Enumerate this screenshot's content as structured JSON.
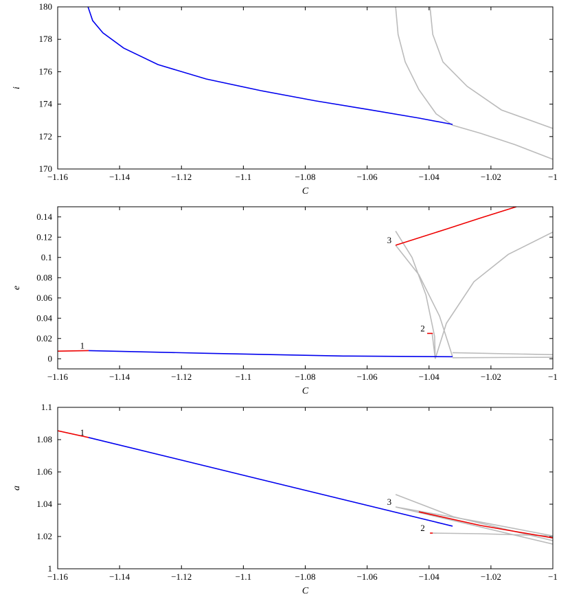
{
  "chart_data": [
    {
      "type": "line",
      "xlabel": "C",
      "ylabel": "i",
      "xlim": [
        -1.16,
        -1
      ],
      "ylim": [
        170,
        180
      ],
      "xticks": [
        {
          "value": -1.16,
          "label": "−1.16"
        },
        {
          "value": -1.14,
          "label": "−1.14"
        },
        {
          "value": -1.12,
          "label": "−1.12"
        },
        {
          "value": -1.1,
          "label": "−1.1"
        },
        {
          "value": -1.08,
          "label": "−1.08"
        },
        {
          "value": -1.06,
          "label": "−1.06"
        },
        {
          "value": -1.04,
          "label": "−1.04"
        },
        {
          "value": -1.02,
          "label": "−1.02"
        },
        {
          "value": -1,
          "label": "−1"
        }
      ],
      "yticks": [
        170,
        172,
        174,
        176,
        178,
        180
      ],
      "series": [
        {
          "color": "#bbbbbb",
          "x": [
            -1.0508,
            -1.05,
            -1.0477,
            -1.0433,
            -1.0377,
            -1.0324,
            -1.0233,
            -1.0122,
            -1
          ],
          "values": [
            180,
            178.3,
            176.6,
            174.9,
            173.4,
            172.7,
            172.2,
            171.5,
            170.6
          ]
        },
        {
          "color": "#bbbbbb",
          "x": [
            -1.0397,
            -1.0388,
            -1.0355,
            -1.0277,
            -1.0166,
            -1
          ],
          "values": [
            180,
            178.3,
            176.6,
            175.1,
            173.64,
            172.5
          ]
        },
        {
          "color": "#0000ee",
          "x": [
            -1.1502,
            -1.1487,
            -1.1454,
            -1.1387,
            -1.1276,
            -1.112,
            -1.0943,
            -1.0766,
            -1.0588,
            -1.0433,
            -1.0324
          ],
          "values": [
            180,
            179.15,
            178.4,
            177.46,
            176.44,
            175.55,
            174.83,
            174.2,
            173.64,
            173.14,
            172.75
          ]
        }
      ],
      "annotations": []
    },
    {
      "type": "line",
      "xlabel": "C",
      "ylabel": "e",
      "xlim": [
        -1.16,
        -1
      ],
      "ylim": [
        -0.01,
        0.15
      ],
      "xticks": [
        {
          "value": -1.16,
          "label": "−1.16"
        },
        {
          "value": -1.14,
          "label": "−1.14"
        },
        {
          "value": -1.12,
          "label": "−1.12"
        },
        {
          "value": -1.1,
          "label": "−1.1"
        },
        {
          "value": -1.08,
          "label": "−1.08"
        },
        {
          "value": -1.06,
          "label": "−1.06"
        },
        {
          "value": -1.04,
          "label": "−1.04"
        },
        {
          "value": -1.02,
          "label": "−1.02"
        },
        {
          "value": -1,
          "label": "−1"
        }
      ],
      "yticks": [
        0,
        0.02,
        0.04,
        0.06,
        0.08,
        0.1,
        0.12,
        0.14
      ],
      "series": [
        {
          "color": "#bbbbbb",
          "x": [
            -1.0508,
            -1.0455,
            -1.041,
            -1.0382,
            -1.038
          ],
          "values": [
            0.126,
            0.1,
            0.063,
            0.022,
            0
          ]
        },
        {
          "color": "#bbbbbb",
          "x": [
            -1.0508,
            -1.0433,
            -1.0366,
            -1.0324
          ],
          "values": [
            0.112,
            0.083,
            0.042,
            0.002
          ]
        },
        {
          "color": "#bbbbbb",
          "x": [
            -1.038,
            -1.0344,
            -1.0255,
            -1.0144,
            -1
          ],
          "values": [
            0,
            0.035,
            0.076,
            0.103,
            0.125
          ]
        },
        {
          "color": "#bbbbbb",
          "x": [
            -1.0324,
            -1
          ],
          "values": [
            0.006,
            0.004
          ]
        },
        {
          "color": "#bbbbbb",
          "x": [
            -1.0324,
            -1
          ],
          "values": [
            0.001,
            0.0015
          ]
        },
        {
          "color": "#bbbbbb",
          "x": [
            -1.039,
            -1.038
          ],
          "values": [
            0.025,
            0
          ]
        },
        {
          "color": "#ee0000",
          "x": [
            -1.16,
            -1.15
          ],
          "values": [
            0.0075,
            0.008
          ]
        },
        {
          "color": "#ee0000",
          "x": [
            -1.0508,
            -1.0344,
            -1.0233,
            -1.0118
          ],
          "values": [
            0.112,
            0.128,
            0.139,
            0.15
          ]
        },
        {
          "color": "#ee0000",
          "x": [
            -1.0406,
            -1.0388
          ],
          "values": [
            0.025,
            0.025
          ]
        },
        {
          "color": "#0000ee",
          "x": [
            -1.15,
            -1.112,
            -1.0677,
            -1.0324
          ],
          "values": [
            0.008,
            0.0054,
            0.0027,
            0.002
          ]
        }
      ],
      "annotations": [
        {
          "text": "1",
          "x": -1.15,
          "y": 0.008
        },
        {
          "text": "2",
          "x": -1.04,
          "y": 0.025
        },
        {
          "text": "3",
          "x": -1.0508,
          "y": 0.112
        }
      ]
    },
    {
      "type": "line",
      "xlabel": "C",
      "ylabel": "a",
      "xlim": [
        -1.16,
        -1
      ],
      "ylim": [
        1,
        1.1
      ],
      "xticks": [
        {
          "value": -1.16,
          "label": "−1.16"
        },
        {
          "value": -1.14,
          "label": "−1.14"
        },
        {
          "value": -1.12,
          "label": "−1.12"
        },
        {
          "value": -1.1,
          "label": "−1.1"
        },
        {
          "value": -1.08,
          "label": "−1.08"
        },
        {
          "value": -1.06,
          "label": "−1.06"
        },
        {
          "value": -1.04,
          "label": "−1.04"
        },
        {
          "value": -1.02,
          "label": "−1.02"
        },
        {
          "value": -1,
          "label": "−1"
        }
      ],
      "yticks": [
        1,
        1.02,
        1.04,
        1.06,
        1.08,
        1.1
      ],
      "series": [
        {
          "color": "#bbbbbb",
          "x": [
            -1.0508,
            -1.0322,
            -1
          ],
          "values": [
            1.046,
            1.0323,
            1.0174
          ]
        },
        {
          "color": "#bbbbbb",
          "x": [
            -1.0508,
            -1.0233,
            -1
          ],
          "values": [
            1.0383,
            1.0289,
            1.0204
          ]
        },
        {
          "color": "#bbbbbb",
          "x": [
            -1.0388,
            -1.0233,
            -1
          ],
          "values": [
            1.0221,
            1.0217,
            1.0204
          ]
        },
        {
          "color": "#bbbbbb",
          "x": [
            -1.0508,
            -1
          ],
          "values": [
            1.0383,
            1.0153
          ]
        },
        {
          "color": "#ee0000",
          "x": [
            -1.16,
            -1.15
          ],
          "values": [
            1.0855,
            1.0813
          ]
        },
        {
          "color": "#ee0000",
          "x": [
            -1.0433,
            -1.0233,
            -1
          ],
          "values": [
            1.0353,
            1.0268,
            1.0191
          ]
        },
        {
          "color": "#ee0000",
          "x": [
            -1.0397,
            -1.0388
          ],
          "values": [
            1.0221,
            1.0221
          ]
        },
        {
          "color": "#0000ee",
          "x": [
            -1.15,
            -1.0324
          ],
          "values": [
            1.0813,
            1.0264
          ]
        }
      ],
      "annotations": [
        {
          "text": "1",
          "x": -1.15,
          "y": 1.0813
        },
        {
          "text": "2",
          "x": -1.04,
          "y": 1.0221
        },
        {
          "text": "3",
          "x": -1.0508,
          "y": 1.0383
        }
      ]
    }
  ]
}
